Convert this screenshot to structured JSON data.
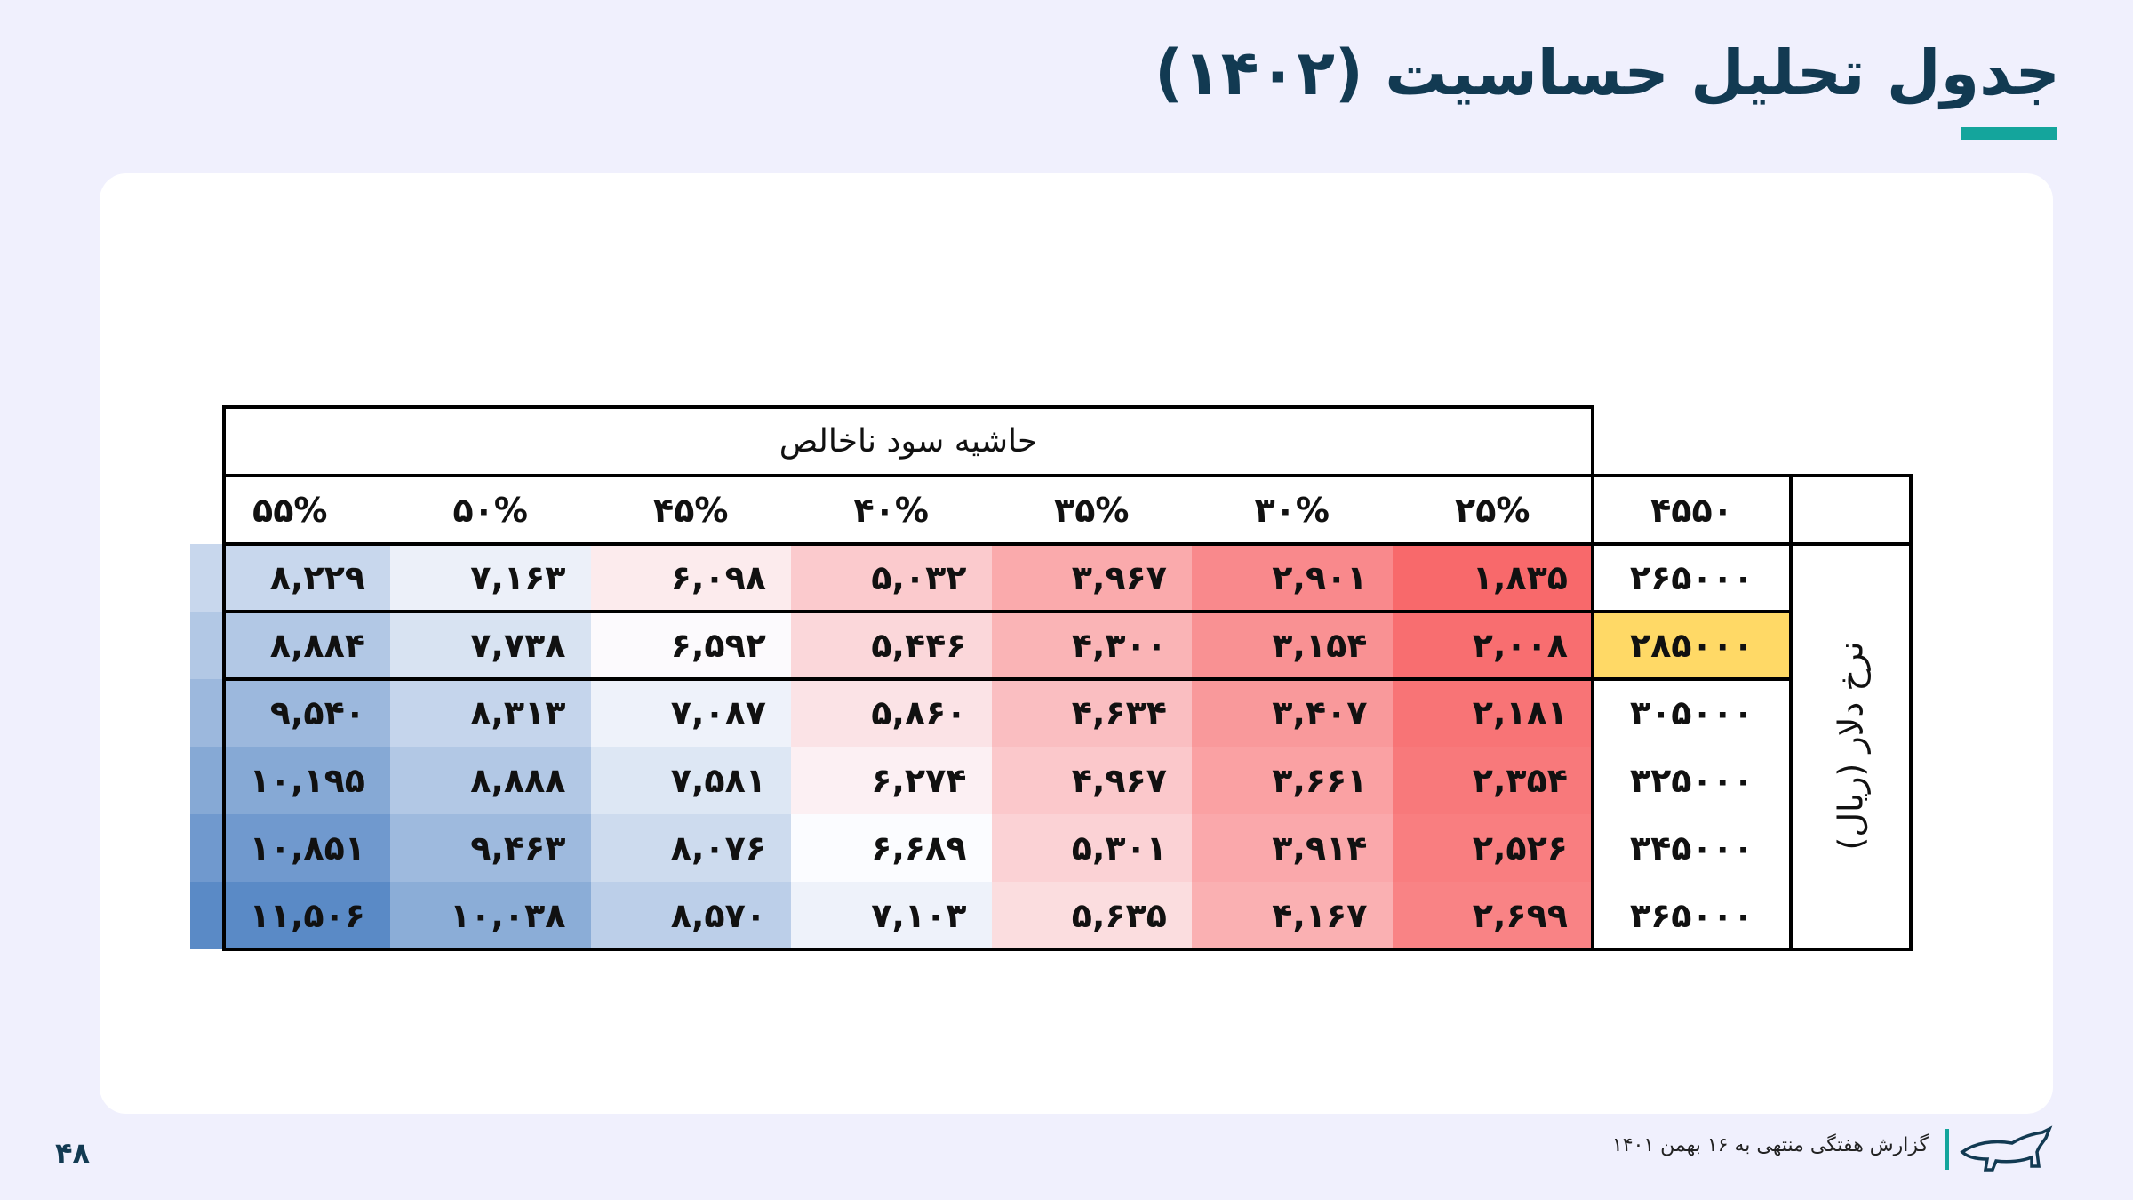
{
  "page": {
    "title": "جدول تحلیل حساسیت (۱۴۰۲)",
    "page_number": "۴۸",
    "footer_text": "گزارش هفتگی منتهی به ۱۶ بهمن ۱۴۰۱"
  },
  "table": {
    "column_group_header": "حاشیه سود ناخالص",
    "corner_label": "۴۵۵۰",
    "row_group_label": "نرخ دلار (ریال)",
    "columns": [
      "۲۵%",
      "۳۰%",
      "۳۵%",
      "۴۰%",
      "۴۵%",
      "۵۰%",
      "۵۵%"
    ],
    "rows": [
      {
        "label": "۲۶۵۰۰۰",
        "values": [
          "۱,۸۳۵",
          "۲,۹۰۱",
          "۳,۹۶۷",
          "۵,۰۳۲",
          "۶,۰۹۸",
          "۷,۱۶۳",
          "۸,۲۲۹"
        ]
      },
      {
        "label": "۲۸۵۰۰۰",
        "values": [
          "۲,۰۰۸",
          "۳,۱۵۴",
          "۴,۳۰۰",
          "۵,۴۴۶",
          "۶,۵۹۲",
          "۷,۷۳۸",
          "۸,۸۸۴"
        ]
      },
      {
        "label": "۳۰۵۰۰۰",
        "values": [
          "۲,۱۸۱",
          "۳,۴۰۷",
          "۴,۶۳۴",
          "۵,۸۶۰",
          "۷,۰۸۷",
          "۸,۳۱۳",
          "۹,۵۴۰"
        ]
      },
      {
        "label": "۳۲۵۰۰۰",
        "values": [
          "۲,۳۵۴",
          "۳,۶۶۱",
          "۴,۹۶۷",
          "۶,۲۷۴",
          "۷,۵۸۱",
          "۸,۸۸۸",
          "۱۰,۱۹۵"
        ]
      },
      {
        "label": "۳۴۵۰۰۰",
        "values": [
          "۲,۵۲۶",
          "۳,۹۱۴",
          "۵,۳۰۱",
          "۶,۶۸۹",
          "۸,۰۷۶",
          "۹,۴۶۳",
          "۱۰,۸۵۱"
        ]
      },
      {
        "label": "۳۶۵۰۰۰",
        "values": [
          "۲,۶۹۹",
          "۴,۱۶۷",
          "۵,۶۳۵",
          "۷,۱۰۳",
          "۸,۵۷۰",
          "۱۰,۰۳۸",
          "۱۱,۵۰۶"
        ]
      }
    ],
    "numeric_values": [
      [
        1835,
        2901,
        3967,
        5032,
        6098,
        7163,
        8229
      ],
      [
        2008,
        3154,
        4300,
        5446,
        6592,
        7738,
        8884
      ],
      [
        2181,
        3407,
        4634,
        5860,
        7087,
        8313,
        9540
      ],
      [
        2354,
        3661,
        4967,
        6274,
        7581,
        8888,
        10195
      ],
      [
        2526,
        3914,
        5301,
        6689,
        8076,
        9463,
        10851
      ],
      [
        2699,
        4167,
        5635,
        7103,
        8570,
        10038,
        11506
      ]
    ],
    "highlighted_row_index": 1,
    "colors": {
      "low": "#f8696b",
      "mid": "#fcfcff",
      "high": "#5a8ac6",
      "highlight": "#ffd966"
    }
  }
}
